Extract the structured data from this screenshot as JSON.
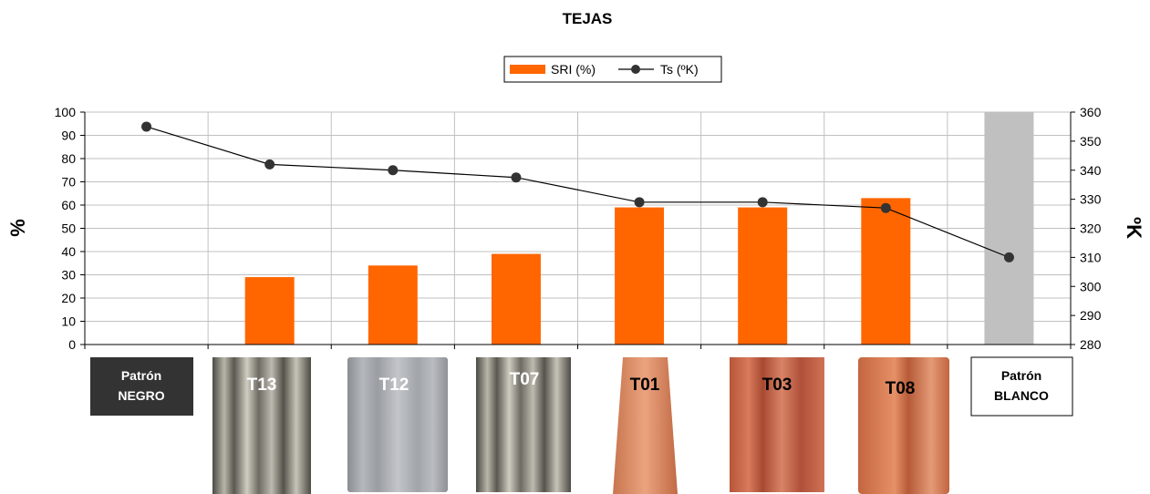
{
  "chart_data": {
    "type": "bar",
    "title": "TEJAS",
    "categories": [
      "Patrón NEGRO",
      "T13",
      "T12",
      "T07",
      "T01",
      "T03",
      "T08",
      "Patrón BLANCO"
    ],
    "series": [
      {
        "name": "SRI (%)",
        "type": "bar",
        "axis": "left",
        "color": "#ff6600",
        "values": [
          null,
          29,
          34,
          39,
          59,
          59,
          63,
          100
        ]
      },
      {
        "name": "Ts (ºK)",
        "type": "line",
        "axis": "right",
        "color": "#000000",
        "values": [
          355,
          342,
          340,
          337.5,
          329,
          329,
          327,
          310
        ]
      }
    ],
    "highlight_bar": {
      "category": "Patrón BLANCO",
      "color": "#c0c0c0"
    },
    "ylabel": "%",
    "y2label": "ºK",
    "ylim": [
      0,
      100
    ],
    "y2lim": [
      280,
      360
    ],
    "yticks": [
      "0",
      "10",
      "20",
      "30",
      "40",
      "50",
      "60",
      "70",
      "80",
      "90",
      "100"
    ],
    "y2ticks": [
      "280",
      "290",
      "300",
      "310",
      "320",
      "330",
      "340",
      "350",
      "360"
    ],
    "grid": true,
    "legend": "top-center"
  },
  "patrones": {
    "negro": {
      "line1": "Patrón",
      "line2": "NEGRO",
      "bg": "#333333",
      "fg": "#ffffff"
    },
    "blanco": {
      "line1": "Patrón",
      "line2": "BLANCO",
      "bg": "#ffffff",
      "fg": "#000000"
    }
  },
  "tiles": [
    {
      "label": "T13",
      "kind": "metal"
    },
    {
      "label": "T12",
      "kind": "grey"
    },
    {
      "label": "T07",
      "kind": "metal"
    },
    {
      "label": "T01",
      "kind": "terracotta"
    },
    {
      "label": "T03",
      "kind": "terracotta-ribbed"
    },
    {
      "label": "T08",
      "kind": "terracotta"
    }
  ]
}
